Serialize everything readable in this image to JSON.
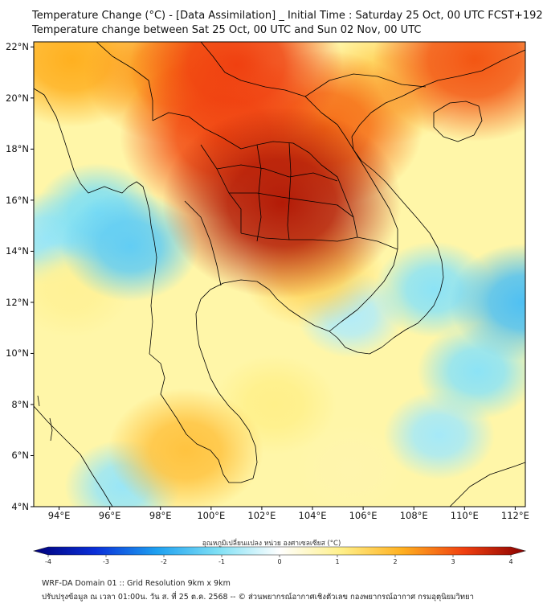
{
  "header": {
    "title_line1": "Temperature Change (°C) - [Data Assimilation] _ Initial Time : Saturday 25 Oct, 00 UTC FCST+192",
    "title_line2": "Temperature change between Sat 25 Oct, 00 UTC and Sun 02 Nov, 00 UTC"
  },
  "map": {
    "lat_labels": [
      "22°N",
      "20°N",
      "18°N",
      "16°N",
      "14°N",
      "12°N",
      "10°N",
      "8°N",
      "6°N",
      "4°N"
    ],
    "lon_labels": [
      "94°E",
      "96°E",
      "98°E",
      "100°E",
      "102°E",
      "104°E",
      "106°E",
      "108°E",
      "110°E",
      "112°E"
    ],
    "extent": {
      "lon_min": 93.0,
      "lon_max": 112.4,
      "lat_min": 4.0,
      "lat_max": 22.2
    },
    "colors": {
      "ocean_base": "#fff6a8",
      "border": "#000000"
    },
    "heat_blobs": [
      {
        "lon": 102.8,
        "lat": 15.9,
        "value": 3.6
      },
      {
        "lon": 100.5,
        "lat": 18.5,
        "value": 2.9
      },
      {
        "lon": 101.0,
        "lat": 21.3,
        "value": 3.0
      },
      {
        "lon": 104.5,
        "lat": 18.8,
        "value": 2.6
      },
      {
        "lon": 98.5,
        "lat": 21.0,
        "value": 2.2
      },
      {
        "lon": 94.5,
        "lat": 21.5,
        "value": 2.0
      },
      {
        "lon": 107.0,
        "lat": 20.5,
        "value": 1.5
      },
      {
        "lon": 110.4,
        "lat": 21.5,
        "value": 2.8
      },
      {
        "lon": 95.5,
        "lat": 15.5,
        "value": -1.0
      },
      {
        "lon": 93.5,
        "lat": 14.5,
        "value": -0.8
      },
      {
        "lon": 96.8,
        "lat": 14.2,
        "value": -1.3
      },
      {
        "lon": 105.5,
        "lat": 11.5,
        "value": -0.6
      },
      {
        "lon": 108.8,
        "lat": 12.5,
        "value": -0.9
      },
      {
        "lon": 112.3,
        "lat": 12.0,
        "value": -1.5
      },
      {
        "lon": 110.5,
        "lat": 9.3,
        "value": -0.9
      },
      {
        "lon": 109.0,
        "lat": 6.8,
        "value": -0.7
      },
      {
        "lon": 96.5,
        "lat": 4.8,
        "value": -0.8
      },
      {
        "lon": 99.0,
        "lat": 6.2,
        "value": 1.7
      },
      {
        "lon": 102.5,
        "lat": 8.0,
        "value": 1.0
      },
      {
        "lon": 104.0,
        "lat": 13.2,
        "value": 1.4
      },
      {
        "lon": 94.5,
        "lat": 12.5,
        "value": 0.9
      },
      {
        "lon": 105.5,
        "lat": 5.5,
        "value": 0.7
      }
    ]
  },
  "colorbar": {
    "title": "อุณหภูมิเปลี่ยนแปลง หน่วย องศาเซลเซียส (°C)",
    "range": [
      -4,
      4
    ],
    "ticks": [
      "-4",
      "-3",
      "-2",
      "-1",
      "0",
      "1",
      "2",
      "3",
      "4"
    ],
    "stops": [
      "#00007a",
      "#0a2fd8",
      "#1ea0f0",
      "#7fe0f5",
      "#ffffff",
      "#fff08a",
      "#ffb020",
      "#f04010",
      "#8a0000"
    ]
  },
  "footer": {
    "line1": "WRF-DA Domain 01 :: Grid Resolution 9km x 9km",
    "line2": "ปรับปรุงข้อมูล ณ เวลา 01:00น. วัน ส. ที่ 25 ต.ค. 2568 -- © ส่วนพยากรณ์อากาศเชิงตัวเลข กองพยากรณ์อากาศ กรมอุตุนิยมวิทยา"
  }
}
